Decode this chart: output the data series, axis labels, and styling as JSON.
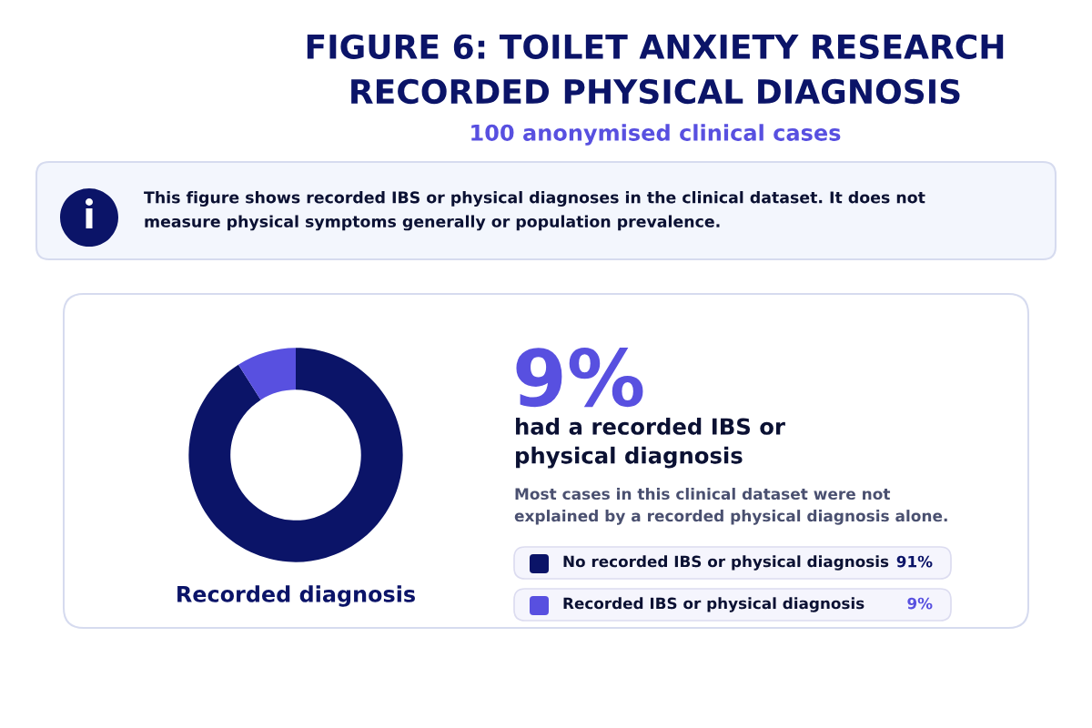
{
  "chart_data": {
    "type": "donut",
    "title": "FIGURE 6: TOILET ANXIETY RESEARCH RECORDED PHYSICAL DIAGNOSIS",
    "subtitle": "100 anonymised clinical cases",
    "xlabel": "Recorded diagnosis",
    "categories": [
      "No recorded IBS or physical diagnosis",
      "Recorded IBS or physical diagnosis"
    ],
    "values": [
      91,
      9
    ],
    "colors": [
      "#0b1468",
      "#5850e0"
    ],
    "value_labels": [
      "91%",
      "9%"
    ],
    "legend": "right",
    "annotations": [
      "This figure shows recorded IBS or physical diagnoses in the clinical dataset. It does not measure physical symptoms generally or population prevalence.",
      "9%",
      "had a recorded IBS or physical diagnosis",
      "Most cases in this clinical dataset were not explained by a recorded physical diagnosis alone."
    ]
  }
}
